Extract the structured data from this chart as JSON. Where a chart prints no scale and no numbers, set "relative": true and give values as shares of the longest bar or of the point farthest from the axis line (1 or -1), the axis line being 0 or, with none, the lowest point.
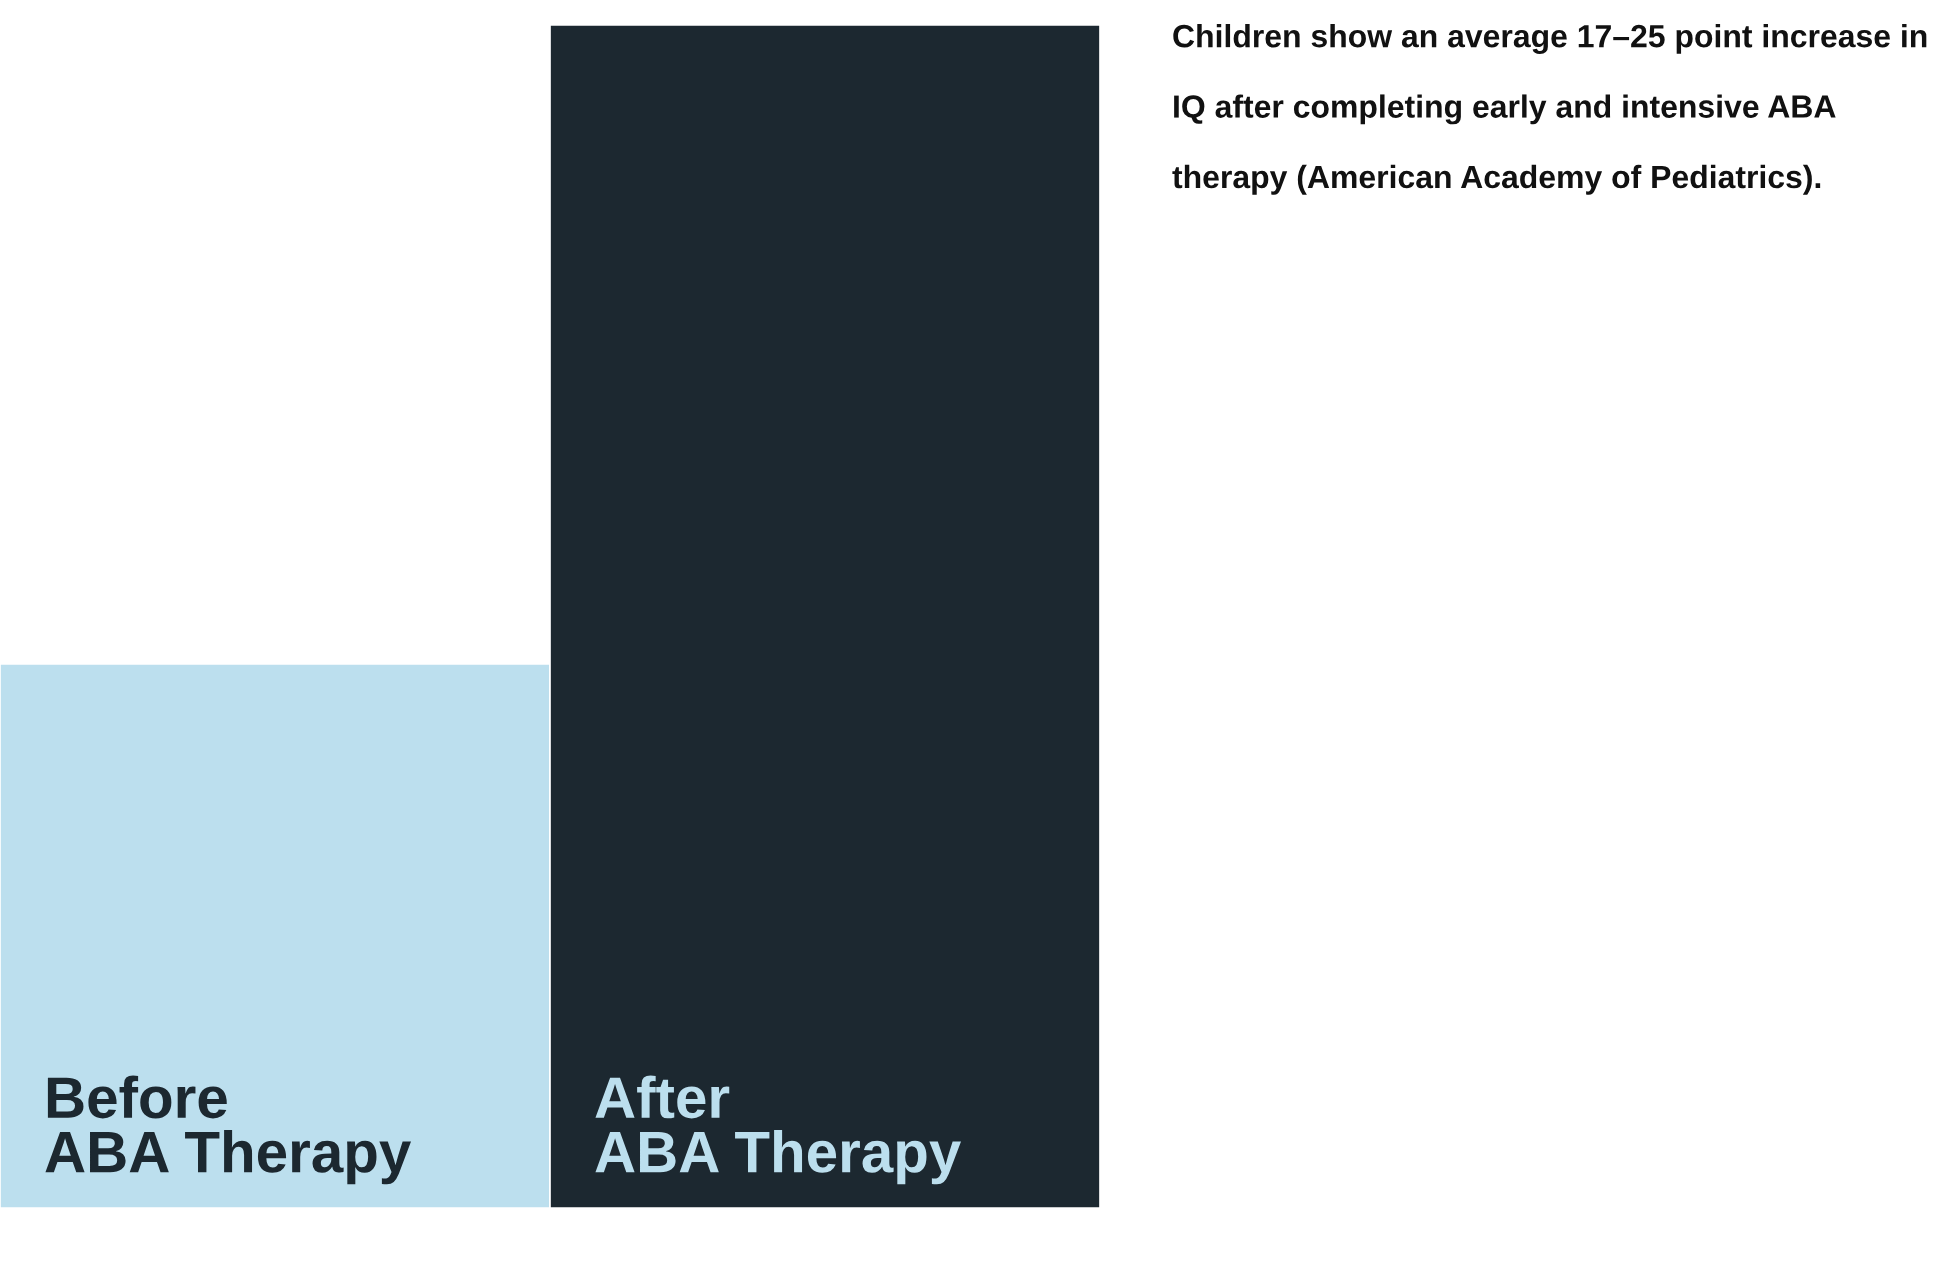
{
  "chart_data": {
    "type": "bar",
    "relative": true,
    "categories": [
      "Before\nABA Therapy",
      "After\nABA Therapy"
    ],
    "values": [
      0.46,
      1
    ],
    "colors": [
      "#bcdfee",
      "#1c2830"
    ],
    "annotations": [
      "Children show an average 17–25 point increase in IQ after completing early and intensive ABA therapy (American Academy of Pediatrics)."
    ]
  }
}
